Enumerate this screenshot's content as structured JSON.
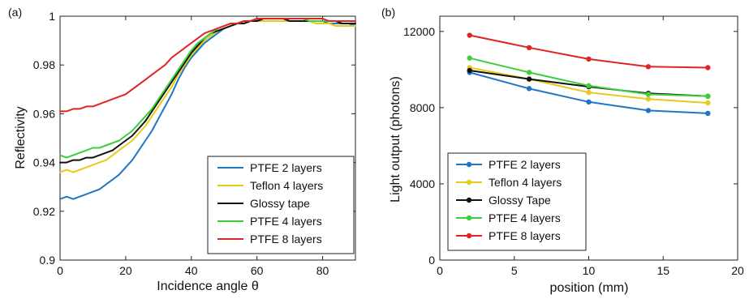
{
  "chart_data": [
    {
      "type": "line",
      "panel_label": "(a)",
      "title": "",
      "xlabel": "Incidence angle θ",
      "ylabel": "Reflectivity",
      "xlim": [
        0,
        90
      ],
      "ylim": [
        0.9,
        1.0
      ],
      "xticks": [
        0,
        20,
        40,
        60,
        80
      ],
      "yticks": [
        0.9,
        0.92,
        0.94,
        0.96,
        0.98,
        1.0
      ],
      "xtick_labels": [
        "0",
        "20",
        "40",
        "60",
        "80"
      ],
      "ytick_labels": [
        "0.9",
        "0.92",
        "0.94",
        "0.96",
        "0.98",
        "1"
      ],
      "grid": false,
      "legend_position": "bottom-right",
      "x": [
        0,
        2,
        4,
        6,
        8,
        10,
        12,
        14,
        16,
        18,
        20,
        22,
        24,
        26,
        28,
        30,
        32,
        34,
        36,
        38,
        40,
        42,
        44,
        46,
        48,
        50,
        52,
        54,
        56,
        58,
        60,
        62,
        64,
        66,
        68,
        70,
        72,
        74,
        76,
        78,
        80,
        82,
        84,
        86,
        88,
        90
      ],
      "series": [
        {
          "name": "PTFE 2 layers",
          "color": "#1f77c4",
          "values": [
            0.925,
            0.926,
            0.925,
            0.926,
            0.927,
            0.928,
            0.929,
            0.931,
            0.933,
            0.935,
            0.938,
            0.941,
            0.945,
            0.949,
            0.953,
            0.958,
            0.963,
            0.968,
            0.974,
            0.979,
            0.983,
            0.986,
            0.989,
            0.991,
            0.993,
            0.995,
            0.996,
            0.997,
            0.998,
            0.998,
            0.998,
            0.998,
            0.998,
            0.998,
            0.998,
            0.998,
            0.998,
            0.998,
            0.998,
            0.998,
            0.998,
            0.997,
            0.997,
            0.997,
            0.997,
            0.996
          ]
        },
        {
          "name": "Teflon 4 layers",
          "color": "#e6cc1a",
          "values": [
            0.936,
            0.937,
            0.936,
            0.937,
            0.938,
            0.939,
            0.94,
            0.941,
            0.943,
            0.945,
            0.947,
            0.949,
            0.952,
            0.955,
            0.959,
            0.963,
            0.967,
            0.971,
            0.976,
            0.98,
            0.984,
            0.987,
            0.99,
            0.992,
            0.994,
            0.995,
            0.996,
            0.997,
            0.997,
            0.998,
            0.998,
            0.998,
            0.998,
            0.998,
            0.998,
            0.998,
            0.998,
            0.998,
            0.998,
            0.997,
            0.997,
            0.997,
            0.996,
            0.996,
            0.996,
            0.996
          ]
        },
        {
          "name": "Glossy tape",
          "color": "#111111",
          "values": [
            0.94,
            0.94,
            0.941,
            0.941,
            0.942,
            0.942,
            0.943,
            0.944,
            0.945,
            0.947,
            0.949,
            0.951,
            0.954,
            0.957,
            0.961,
            0.965,
            0.969,
            0.973,
            0.977,
            0.981,
            0.985,
            0.988,
            0.991,
            0.993,
            0.994,
            0.995,
            0.996,
            0.997,
            0.997,
            0.998,
            0.998,
            0.999,
            0.999,
            0.999,
            0.999,
            0.998,
            0.998,
            0.998,
            0.998,
            0.998,
            0.998,
            0.998,
            0.998,
            0.997,
            0.997,
            0.997
          ]
        },
        {
          "name": "PTFE 4 layers",
          "color": "#3ccf3c",
          "values": [
            0.943,
            0.942,
            0.943,
            0.944,
            0.945,
            0.946,
            0.946,
            0.947,
            0.948,
            0.949,
            0.951,
            0.953,
            0.956,
            0.959,
            0.962,
            0.966,
            0.97,
            0.974,
            0.978,
            0.982,
            0.986,
            0.989,
            0.991,
            0.993,
            0.995,
            0.996,
            0.997,
            0.997,
            0.998,
            0.998,
            0.999,
            0.999,
            0.999,
            0.999,
            0.999,
            0.999,
            0.999,
            0.999,
            0.998,
            0.998,
            0.998,
            0.998,
            0.998,
            0.998,
            0.998,
            0.998
          ]
        },
        {
          "name": "PTFE 8 layers",
          "color": "#e02424",
          "values": [
            0.961,
            0.961,
            0.962,
            0.962,
            0.963,
            0.963,
            0.964,
            0.965,
            0.966,
            0.967,
            0.968,
            0.97,
            0.972,
            0.974,
            0.976,
            0.978,
            0.98,
            0.983,
            0.985,
            0.987,
            0.989,
            0.991,
            0.993,
            0.994,
            0.995,
            0.996,
            0.997,
            0.997,
            0.998,
            0.998,
            0.999,
            0.999,
            0.999,
            0.999,
            0.999,
            0.999,
            0.999,
            0.999,
            0.999,
            0.999,
            0.999,
            0.998,
            0.998,
            0.998,
            0.998,
            0.998
          ]
        }
      ]
    },
    {
      "type": "line",
      "panel_label": "(b)",
      "title": "",
      "xlabel": "position (mm)",
      "ylabel": "Light output (photons)",
      "xlim": [
        0,
        20
      ],
      "ylim": [
        0,
        12800
      ],
      "xticks": [
        0,
        5,
        10,
        15,
        20
      ],
      "yticks": [
        0,
        4000,
        8000,
        12000
      ],
      "xtick_labels": [
        "0",
        "5",
        "10",
        "15",
        "20"
      ],
      "ytick_labels": [
        "0",
        "4000",
        "8000",
        "12000"
      ],
      "grid": false,
      "legend_position": "bottom-left",
      "x": [
        2,
        6,
        10,
        14,
        18
      ],
      "series": [
        {
          "name": "PTFE 2 layers",
          "color": "#1f77c4",
          "values": [
            9850,
            9000,
            8300,
            7850,
            7700
          ]
        },
        {
          "name": "Teflon 4 layers",
          "color": "#e6cc1a",
          "values": [
            10100,
            9500,
            8800,
            8450,
            8250
          ]
        },
        {
          "name": "Glossy Tape",
          "color": "#111111",
          "values": [
            9950,
            9500,
            9100,
            8750,
            8600
          ]
        },
        {
          "name": "PTFE 4 layers",
          "color": "#3ccf3c",
          "values": [
            10600,
            9850,
            9150,
            8700,
            8600
          ]
        },
        {
          "name": "PTFE 8 layers",
          "color": "#e02424",
          "values": [
            11800,
            11150,
            10550,
            10150,
            10100
          ]
        }
      ]
    }
  ]
}
